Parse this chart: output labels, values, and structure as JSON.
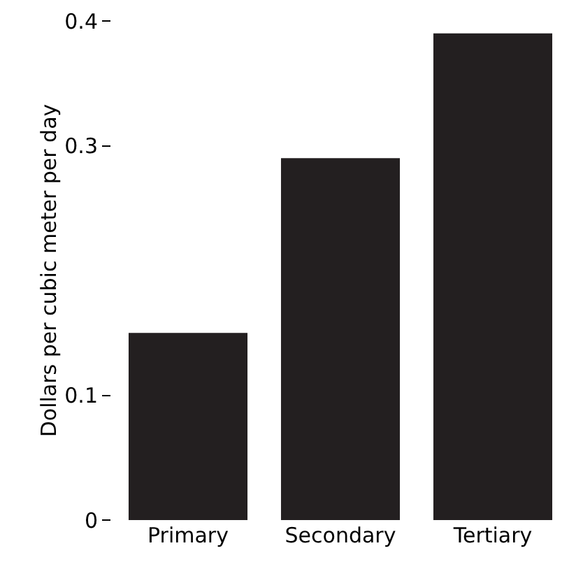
{
  "chart_data": {
    "type": "bar",
    "ylabel": "Dollars per cubic meter per day",
    "categories": [
      "Primary",
      "Secondary",
      "Tertiary"
    ],
    "values": [
      0.15,
      0.29,
      0.39
    ],
    "color": "#231f20",
    "ylim": [
      0,
      0.4
    ],
    "yticks": [
      0,
      0.1,
      0.3,
      0.4
    ],
    "grid": false,
    "legend": false
  }
}
